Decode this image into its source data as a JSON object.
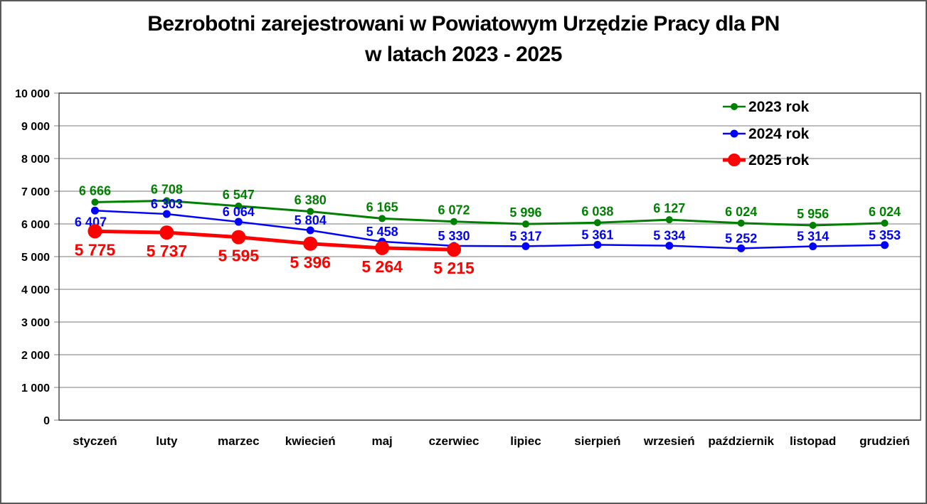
{
  "page": {
    "title_line1": "Bezrobotni zarejestrowani w Powiatowym Urzędzie Pracy dla PN",
    "title_line2": "w latach 2023 - 2025"
  },
  "chart_data": {
    "type": "line",
    "title": "Bezrobotni zarejestrowani w Powiatowym Urzędzie Pracy dla PN w latach 2023 - 2025",
    "categories": [
      "styczeń",
      "luty",
      "marzec",
      "kwiecień",
      "maj",
      "czerwiec",
      "lipiec",
      "sierpień",
      "wrzesień",
      "październik",
      "listopad",
      "grudzień"
    ],
    "series": [
      {
        "name": "2023 rok",
        "color": "#008000",
        "values": [
          6666,
          6708,
          6547,
          6380,
          6165,
          6072,
          5996,
          6038,
          6127,
          6024,
          5956,
          6024
        ],
        "labels_position": "above",
        "emphasis": false
      },
      {
        "name": "2024 rok",
        "color": "#0000FF",
        "values": [
          6407,
          6303,
          6064,
          5804,
          5458,
          5330,
          5317,
          5361,
          5334,
          5252,
          5314,
          5353
        ],
        "labels_position": "above",
        "first_label_below": true,
        "emphasis": false
      },
      {
        "name": "2025 rok",
        "color": "#FF0000",
        "values": [
          5775,
          5737,
          5595,
          5396,
          5264,
          5215
        ],
        "labels_position": "below",
        "emphasis": true
      }
    ],
    "ylim": [
      0,
      10000
    ],
    "ytick_step": 1000,
    "ytick_labels": [
      "0",
      "1 000",
      "2 000",
      "3 000",
      "4 000",
      "5 000",
      "6 000",
      "7 000",
      "8 000",
      "9 000",
      "10 000"
    ],
    "grid": true,
    "gridline_color": "#A6A6A6",
    "axis_color": "#404040",
    "label_text_colors": {
      "2023 rok": "#008000",
      "2024 rok": "#0000FF",
      "2025 rok": "#FF0000"
    },
    "legend_position": "top-right",
    "number_format": "space-thousands"
  }
}
